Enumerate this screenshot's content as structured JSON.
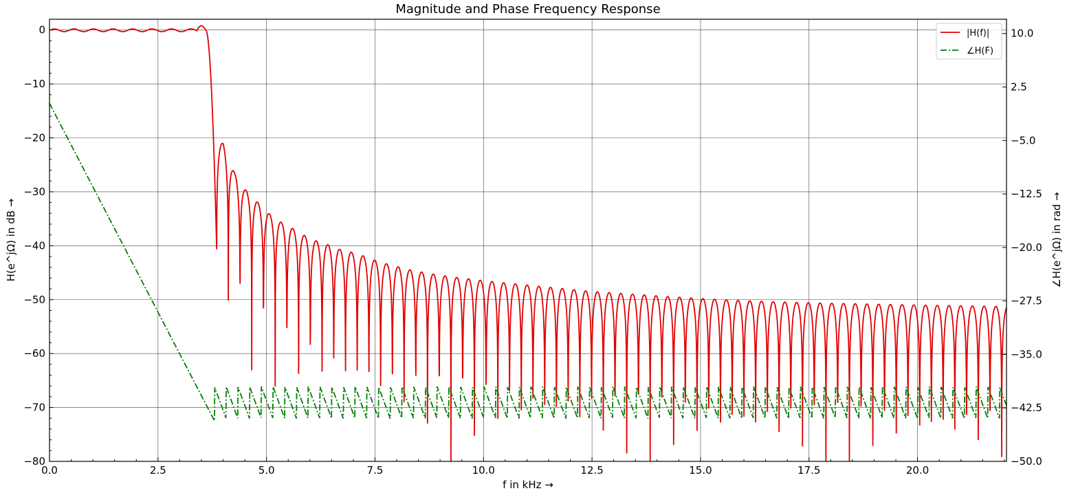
{
  "chart_data": {
    "type": "line",
    "title": "Magnitude and Phase Frequency Response",
    "xlabel": "f in kHz →",
    "ylabel_left": "H(e^jΩ) in dB →",
    "ylabel_right": "∠H(e^jΩ) in rad →",
    "xlim": [
      0,
      22.05
    ],
    "ylim_left": [
      -80,
      2
    ],
    "ylim_right": [
      -50,
      12
    ],
    "x_ticks": [
      "0.0",
      "2.5",
      "5.0",
      "7.5",
      "10.0",
      "12.5",
      "15.0",
      "17.5",
      "20.0"
    ],
    "y_ticks_left": [
      "0",
      "−10",
      "−20",
      "−30",
      "−40",
      "−50",
      "−60",
      "−70",
      "−80"
    ],
    "y_ticks_right": [
      "10.0",
      "2.5",
      "−5.0",
      "−12.5",
      "−20.0",
      "−27.5",
      "−35.0",
      "−42.5",
      "−50.0"
    ],
    "grid": true,
    "legend_position": "top-right",
    "series": [
      {
        "name": "|H(f)|",
        "axis": "left",
        "color": "#e00000",
        "style": "solid",
        "passband_edge_khz": 3.6,
        "stopband_start_khz": 3.85,
        "sidelobe_peaks": [
          [
            4.0,
            -21
          ],
          [
            4.25,
            -26.3
          ],
          [
            4.5,
            -29.5
          ],
          [
            4.8,
            -32
          ],
          [
            5.05,
            -34
          ],
          [
            5.3,
            -35.5
          ],
          [
            5.6,
            -36.8
          ],
          [
            5.85,
            -38
          ],
          [
            6.1,
            -39
          ],
          [
            6.35,
            -39.6
          ],
          [
            6.6,
            -40.5
          ],
          [
            7.1,
            -41.5
          ],
          [
            7.6,
            -43
          ],
          [
            8.3,
            -44.5
          ],
          [
            9.0,
            -45.5
          ],
          [
            10.0,
            -46.5
          ],
          [
            11.0,
            -47.3
          ],
          [
            12.5,
            -48.5
          ],
          [
            14.0,
            -49.3
          ],
          [
            15.0,
            -49.8
          ],
          [
            16.0,
            -50.2
          ],
          [
            17.5,
            -50.6
          ],
          [
            20.0,
            -51.0
          ],
          [
            22.0,
            -51.3
          ]
        ]
      },
      {
        "name": "∠H(F)",
        "axis": "right",
        "color": "#007f00",
        "style": "dash-dot",
        "linear_phase_points": [
          [
            0.0,
            0.2
          ],
          [
            3.8,
            -44.3
          ]
        ],
        "stopband_phase_range": [
          -44.0,
          -39.5
        ]
      }
    ]
  }
}
